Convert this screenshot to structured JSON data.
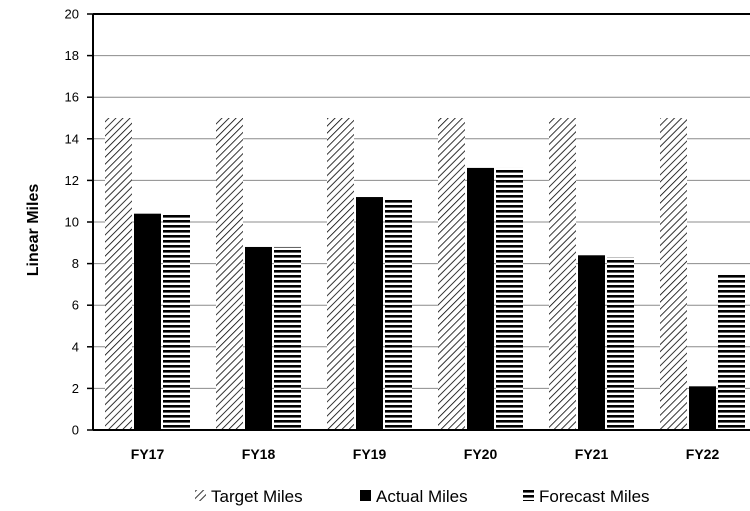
{
  "chart_data": {
    "type": "bar",
    "title": "",
    "xlabel": "",
    "ylabel": "Linear Miles",
    "ylim": [
      0,
      20
    ],
    "yticks": [
      0,
      2,
      4,
      6,
      8,
      10,
      12,
      14,
      16,
      18,
      20
    ],
    "grid": true,
    "legend_position": "bottom",
    "categories": [
      "FY17",
      "FY18",
      "FY19",
      "FY20",
      "FY21",
      "FY22"
    ],
    "series": [
      {
        "name": "Target Miles",
        "pattern": "diagonal-hatch",
        "color": "#000000",
        "values": [
          15,
          15,
          15,
          15,
          15,
          15
        ]
      },
      {
        "name": "Actual Miles",
        "pattern": "solid",
        "color": "#000000",
        "values": [
          10.4,
          8.8,
          11.2,
          12.6,
          8.4,
          2.1
        ]
      },
      {
        "name": "Forecast Miles",
        "pattern": "horizontal-lines",
        "color": "#000000",
        "values": [
          10.4,
          8.8,
          11.1,
          12.6,
          8.3,
          7.5
        ]
      }
    ]
  }
}
